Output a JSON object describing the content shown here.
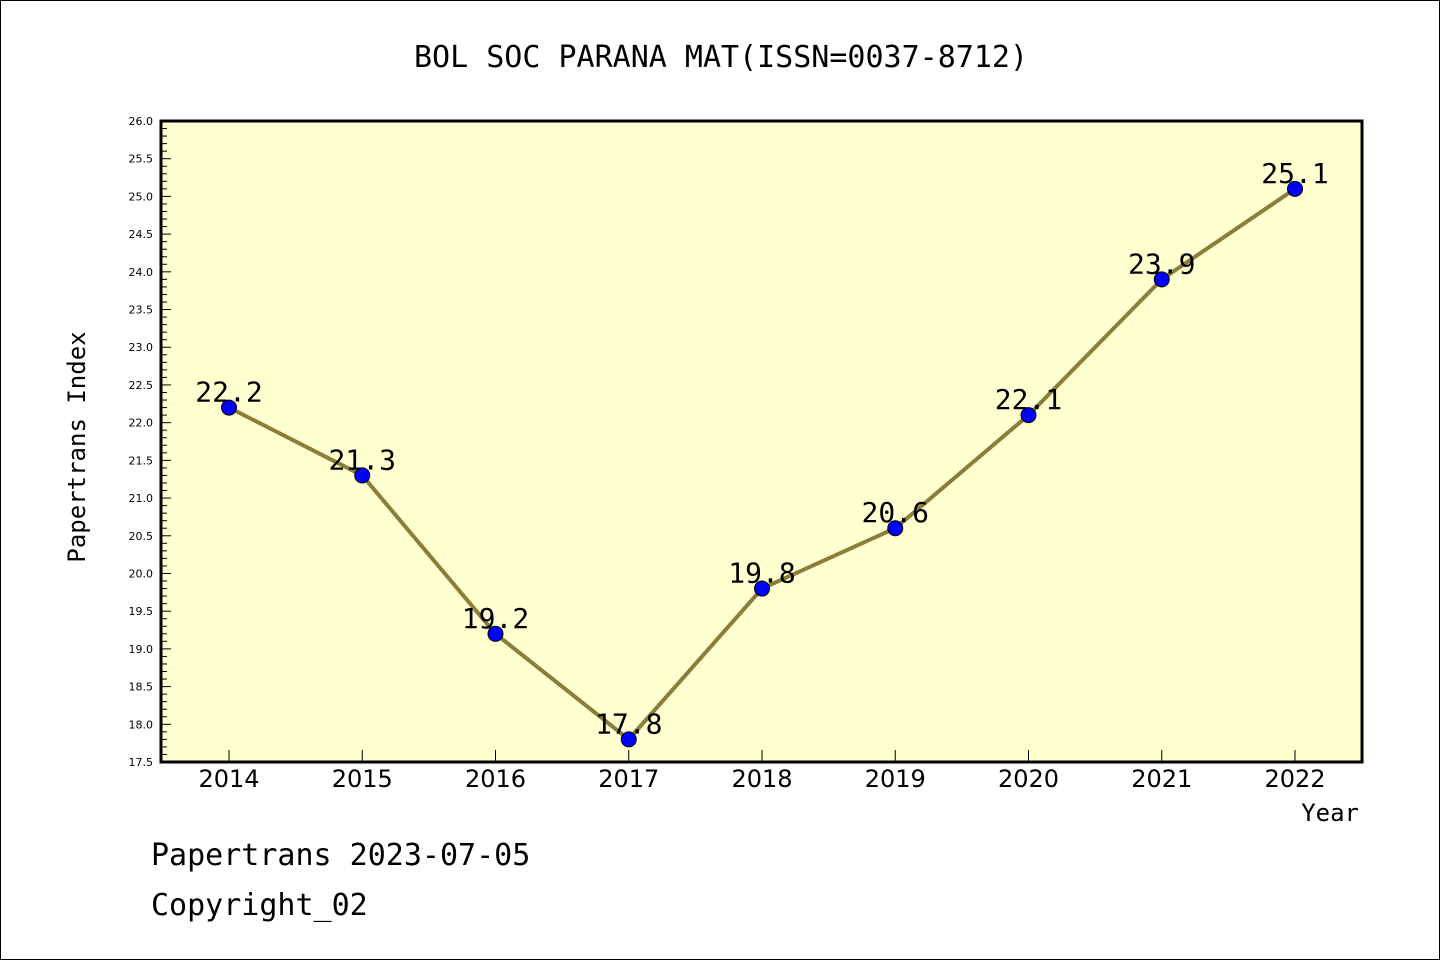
{
  "chart_data": {
    "type": "line",
    "title": "BOL SOC PARANA MAT(ISSN=0037-8712)",
    "xlabel": "Year",
    "ylabel": "Papertrans Index",
    "categories": [
      "2014",
      "2015",
      "2016",
      "2017",
      "2018",
      "2019",
      "2020",
      "2021",
      "2022"
    ],
    "series": [
      {
        "values": [
          22.2,
          21.3,
          19.2,
          17.8,
          19.8,
          20.6,
          22.1,
          23.9,
          25.1
        ]
      }
    ],
    "data_labels": [
      "22.2",
      "21.3",
      "19.2",
      "17.8",
      "19.8",
      "20.6",
      "22.1",
      "23.9",
      "25.1"
    ],
    "ylim": [
      17.5,
      26.0
    ],
    "y_ticks": [
      "17.5",
      "18.0",
      "18.5",
      "19.0",
      "19.5",
      "20.0",
      "20.5",
      "21.0",
      "21.5",
      "22.0",
      "22.5",
      "23.0",
      "23.5",
      "24.0",
      "24.5",
      "25.0",
      "25.5",
      "26.0"
    ],
    "grid": false,
    "colors": {
      "plot_background": "#ffffd0",
      "line": "#8b7d3a",
      "marker": "#0000ff"
    }
  },
  "footer": {
    "source": "Papertrans 2023-07-05",
    "copyright": "Copyright_02"
  }
}
